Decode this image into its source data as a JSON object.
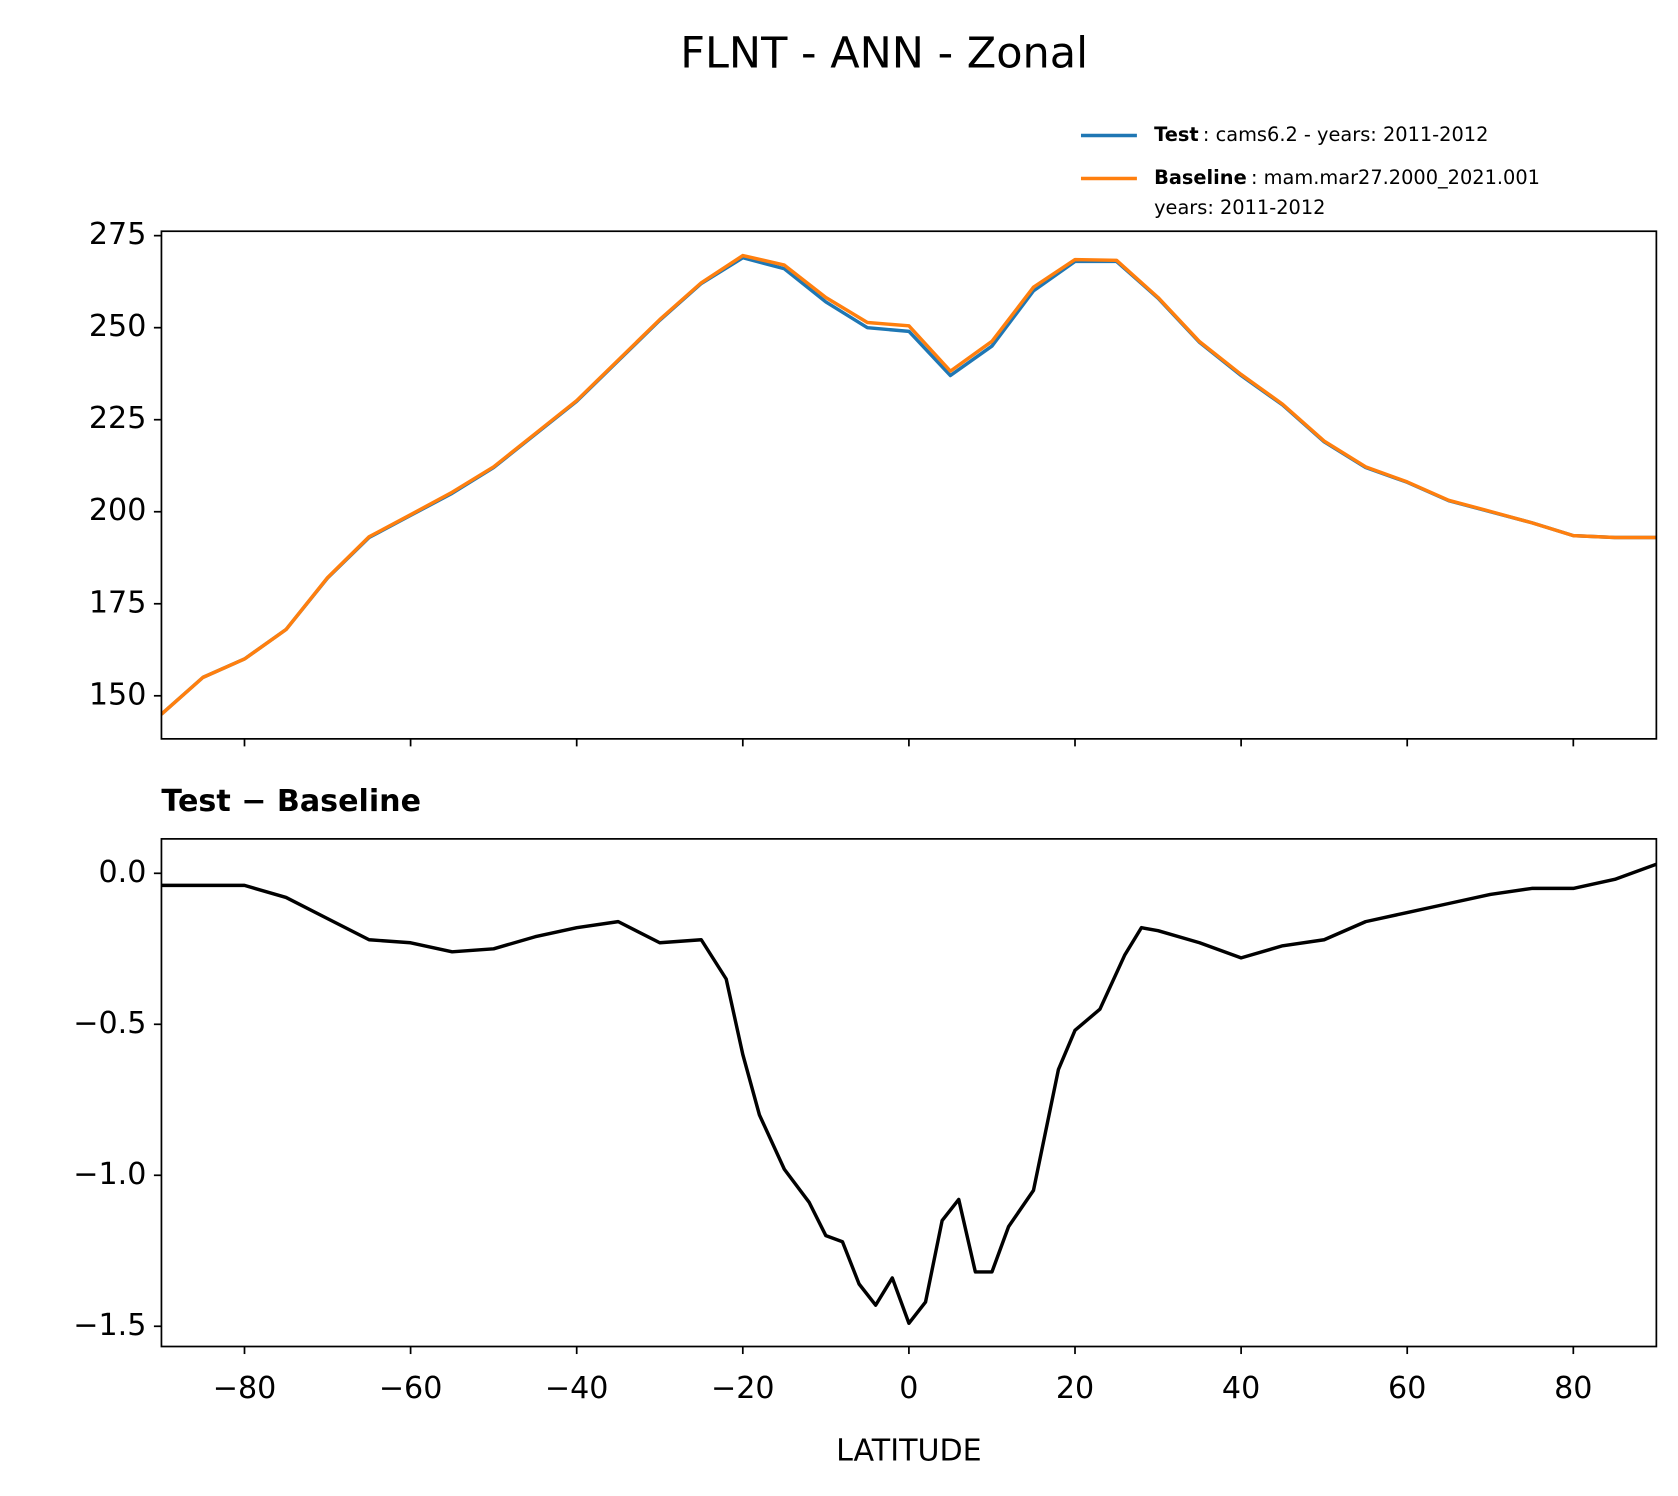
{
  "chart_data": [
    {
      "type": "line",
      "title": "FLNT - ANN - Zonal",
      "x": [
        -90,
        -85,
        -80,
        -75,
        -70,
        -65,
        -60,
        -55,
        -50,
        -45,
        -40,
        -35,
        -30,
        -25,
        -20,
        -15,
        -10,
        -5,
        0,
        5,
        10,
        15,
        20,
        25,
        30,
        35,
        40,
        45,
        50,
        55,
        60,
        65,
        70,
        75,
        80,
        85,
        90
      ],
      "series": [
        {
          "name": "Test",
          "label_lines": [
            ": cams6.2 - years: 2011-2012"
          ],
          "color": "#1f77b4",
          "values": [
            145,
            155,
            160,
            168,
            182,
            193,
            199,
            205,
            212,
            221,
            230,
            241,
            252,
            262,
            269,
            266,
            257,
            250,
            249,
            237,
            245,
            260,
            268,
            268,
            258,
            246,
            237,
            229,
            219,
            212,
            208,
            203,
            200,
            197,
            193.5,
            193,
            193
          ]
        },
        {
          "name": "Baseline",
          "label_lines": [
            ": mam.mar27.2000_2021.001",
            "years: 2011-2012"
          ],
          "color": "#ff7f0e",
          "values": [
            145,
            155,
            160,
            168,
            182.1,
            193.2,
            199.2,
            205.3,
            212.2,
            221.2,
            230.2,
            241.2,
            252.2,
            262.2,
            269.6,
            267,
            258.2,
            251.4,
            250.5,
            238.2,
            246.3,
            261,
            268.5,
            268.3,
            258.2,
            246.2,
            237.3,
            229.2,
            219.2,
            212.2,
            208.1,
            203.1,
            200.1,
            197,
            193.5,
            193,
            193
          ]
        }
      ],
      "xlim": [
        -90,
        90
      ],
      "xticks": [
        {
          "value": -80,
          "label": "−80"
        },
        {
          "value": -60,
          "label": "−60"
        },
        {
          "value": -40,
          "label": "−40"
        },
        {
          "value": -20,
          "label": "−20"
        },
        0,
        20,
        40,
        60,
        80
      ],
      "ylim": [
        138.3,
        276.2
      ],
      "yticks": [
        150,
        175,
        200,
        225,
        250,
        275
      ]
    },
    {
      "type": "line",
      "title": "Test − Baseline",
      "x_label": "LATITUDE",
      "x": [
        -90,
        -85,
        -80,
        -75,
        -70,
        -65,
        -60,
        -55,
        -50,
        -45,
        -40,
        -35,
        -30,
        -25,
        -22,
        -20,
        -18,
        -15,
        -12,
        -10,
        -8,
        -6,
        -4,
        -2,
        0,
        2,
        4,
        6,
        8,
        10,
        12,
        15,
        18,
        20,
        23,
        26,
        28,
        30,
        35,
        40,
        45,
        50,
        55,
        60,
        65,
        70,
        75,
        80,
        85,
        90
      ],
      "series": [
        {
          "name": "Test − Baseline",
          "color": "#000000",
          "values": [
            -0.04,
            -0.04,
            -0.04,
            -0.08,
            -0.15,
            -0.22,
            -0.23,
            -0.26,
            -0.25,
            -0.21,
            -0.18,
            -0.16,
            -0.23,
            -0.22,
            -0.35,
            -0.6,
            -0.8,
            -0.98,
            -1.09,
            -1.2,
            -1.22,
            -1.36,
            -1.43,
            -1.34,
            -1.49,
            -1.42,
            -1.15,
            -1.08,
            -1.32,
            -1.32,
            -1.17,
            -1.05,
            -0.65,
            -0.52,
            -0.45,
            -0.27,
            -0.18,
            -0.19,
            -0.23,
            -0.28,
            -0.24,
            -0.22,
            -0.16,
            -0.13,
            -0.1,
            -0.07,
            -0.05,
            -0.05,
            -0.02,
            0.03
          ]
        }
      ],
      "xlim": [
        -90,
        90
      ],
      "xticks": [
        {
          "value": -80,
          "label": "−80"
        },
        {
          "value": -60,
          "label": "−60"
        },
        {
          "value": -40,
          "label": "−40"
        },
        {
          "value": -20,
          "label": "−20"
        },
        0,
        20,
        40,
        60,
        80
      ],
      "ylim": [
        -1.567,
        0.114
      ],
      "yticks": [
        {
          "value": 0,
          "label": "0.0"
        },
        {
          "value": -0.5,
          "label": "−0.5"
        },
        {
          "value": -1,
          "label": "−1.0"
        },
        {
          "value": -1.5,
          "label": "−1.5"
        }
      ]
    }
  ]
}
